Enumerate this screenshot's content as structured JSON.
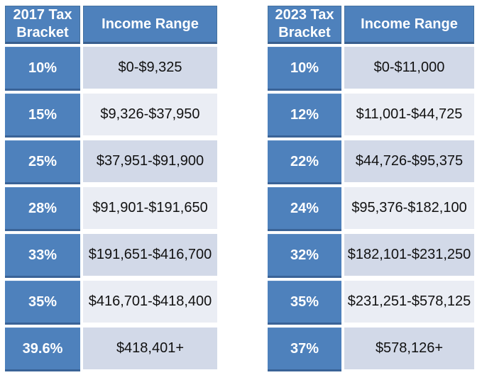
{
  "colors": {
    "accent_blue": "#4E81BC",
    "accent_blue_border": "#395F8E",
    "band_dark": "#D2D9E8",
    "band_light": "#EAEDF4",
    "header_text": "#FFFFFF",
    "value_text": "#111111"
  },
  "chart_data": [
    {
      "type": "table",
      "title": "2017 Tax Brackets",
      "columns": [
        "2017 Tax Bracket",
        "Income Range"
      ],
      "rows": [
        [
          "10%",
          "$0-$9,325"
        ],
        [
          "15%",
          "$9,326-$37,950"
        ],
        [
          "25%",
          "$37,951-$91,900"
        ],
        [
          "28%",
          "$91,901-$191,650"
        ],
        [
          "33%",
          "$191,651-$416,700"
        ],
        [
          "35%",
          "$416,701-$418,400"
        ],
        [
          "39.6%",
          "$418,401+"
        ]
      ]
    },
    {
      "type": "table",
      "title": "2023 Tax Brackets",
      "columns": [
        "2023 Tax Bracket",
        "Income Range"
      ],
      "rows": [
        [
          "10%",
          "$0-$11,000"
        ],
        [
          "12%",
          "$11,001-$44,725"
        ],
        [
          "22%",
          "$44,726-$95,375"
        ],
        [
          "24%",
          "$95,376-$182,100"
        ],
        [
          "32%",
          "$182,101-$231,250"
        ],
        [
          "35%",
          "$231,251-$578,125"
        ],
        [
          "37%",
          "$578,126+"
        ]
      ]
    }
  ]
}
